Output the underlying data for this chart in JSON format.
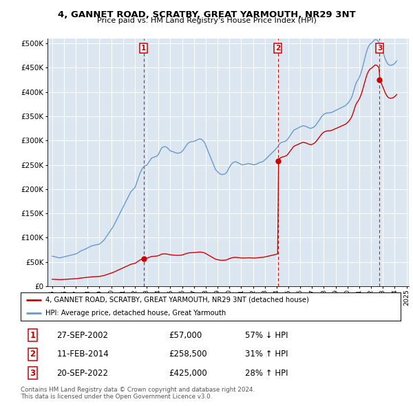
{
  "title": "4, GANNET ROAD, SCRATBY, GREAT YARMOUTH, NR29 3NT",
  "subtitle": "Price paid vs. HM Land Registry's House Price Index (HPI)",
  "legend_line1": "4, GANNET ROAD, SCRATBY, GREAT YARMOUTH, NR29 3NT (detached house)",
  "legend_line2": "HPI: Average price, detached house, Great Yarmouth",
  "footnote": "Contains HM Land Registry data © Crown copyright and database right 2024.\nThis data is licensed under the Open Government Licence v3.0.",
  "sale_color": "#cc0000",
  "hpi_color": "#6699cc",
  "ylim": [
    0,
    510000
  ],
  "yticks": [
    0,
    50000,
    100000,
    150000,
    200000,
    250000,
    300000,
    350000,
    400000,
    450000,
    500000
  ],
  "ytick_labels": [
    "£0",
    "£50K",
    "£100K",
    "£150K",
    "£200K",
    "£250K",
    "£300K",
    "£350K",
    "£400K",
    "£450K",
    "£500K"
  ],
  "sales": [
    {
      "label": "1",
      "date_num": 2002.74,
      "price": 57000,
      "date_str": "27-SEP-2002",
      "pct": "57%",
      "dir": "↓"
    },
    {
      "label": "2",
      "date_num": 2014.12,
      "price": 258500,
      "date_str": "11-FEB-2014",
      "pct": "31%",
      "dir": "↑"
    },
    {
      "label": "3",
      "date_num": 2022.72,
      "price": 425000,
      "date_str": "20-SEP-2022",
      "pct": "28%",
      "dir": "↑"
    }
  ],
  "hpi_data": {
    "years": [
      1995.0,
      1995.083,
      1995.167,
      1995.25,
      1995.333,
      1995.417,
      1995.5,
      1995.583,
      1995.667,
      1995.75,
      1995.833,
      1995.917,
      1996.0,
      1996.083,
      1996.167,
      1996.25,
      1996.333,
      1996.417,
      1996.5,
      1996.583,
      1996.667,
      1996.75,
      1996.833,
      1996.917,
      1997.0,
      1997.083,
      1997.167,
      1997.25,
      1997.333,
      1997.417,
      1997.5,
      1997.583,
      1997.667,
      1997.75,
      1997.833,
      1997.917,
      1998.0,
      1998.083,
      1998.167,
      1998.25,
      1998.333,
      1998.417,
      1998.5,
      1998.583,
      1998.667,
      1998.75,
      1998.833,
      1998.917,
      1999.0,
      1999.083,
      1999.167,
      1999.25,
      1999.333,
      1999.417,
      1999.5,
      1999.583,
      1999.667,
      1999.75,
      1999.833,
      1999.917,
      2000.0,
      2000.083,
      2000.167,
      2000.25,
      2000.333,
      2000.417,
      2000.5,
      2000.583,
      2000.667,
      2000.75,
      2000.833,
      2000.917,
      2001.0,
      2001.083,
      2001.167,
      2001.25,
      2001.333,
      2001.417,
      2001.5,
      2001.583,
      2001.667,
      2001.75,
      2001.833,
      2001.917,
      2002.0,
      2002.083,
      2002.167,
      2002.25,
      2002.333,
      2002.417,
      2002.5,
      2002.583,
      2002.667,
      2002.75,
      2002.833,
      2002.917,
      2003.0,
      2003.083,
      2003.167,
      2003.25,
      2003.333,
      2003.417,
      2003.5,
      2003.583,
      2003.667,
      2003.75,
      2003.833,
      2003.917,
      2004.0,
      2004.083,
      2004.167,
      2004.25,
      2004.333,
      2004.417,
      2004.5,
      2004.583,
      2004.667,
      2004.75,
      2004.833,
      2004.917,
      2005.0,
      2005.083,
      2005.167,
      2005.25,
      2005.333,
      2005.417,
      2005.5,
      2005.583,
      2005.667,
      2005.75,
      2005.833,
      2005.917,
      2006.0,
      2006.083,
      2006.167,
      2006.25,
      2006.333,
      2006.417,
      2006.5,
      2006.583,
      2006.667,
      2006.75,
      2006.833,
      2006.917,
      2007.0,
      2007.083,
      2007.167,
      2007.25,
      2007.333,
      2007.417,
      2007.5,
      2007.583,
      2007.667,
      2007.75,
      2007.833,
      2007.917,
      2008.0,
      2008.083,
      2008.167,
      2008.25,
      2008.333,
      2008.417,
      2008.5,
      2008.583,
      2008.667,
      2008.75,
      2008.833,
      2008.917,
      2009.0,
      2009.083,
      2009.167,
      2009.25,
      2009.333,
      2009.417,
      2009.5,
      2009.583,
      2009.667,
      2009.75,
      2009.833,
      2009.917,
      2010.0,
      2010.083,
      2010.167,
      2010.25,
      2010.333,
      2010.417,
      2010.5,
      2010.583,
      2010.667,
      2010.75,
      2010.833,
      2010.917,
      2011.0,
      2011.083,
      2011.167,
      2011.25,
      2011.333,
      2011.417,
      2011.5,
      2011.583,
      2011.667,
      2011.75,
      2011.833,
      2011.917,
      2012.0,
      2012.083,
      2012.167,
      2012.25,
      2012.333,
      2012.417,
      2012.5,
      2012.583,
      2012.667,
      2012.75,
      2012.833,
      2012.917,
      2013.0,
      2013.083,
      2013.167,
      2013.25,
      2013.333,
      2013.417,
      2013.5,
      2013.583,
      2013.667,
      2013.75,
      2013.833,
      2013.917,
      2014.0,
      2014.083,
      2014.167,
      2014.25,
      2014.333,
      2014.417,
      2014.5,
      2014.583,
      2014.667,
      2014.75,
      2014.833,
      2014.917,
      2015.0,
      2015.083,
      2015.167,
      2015.25,
      2015.333,
      2015.417,
      2015.5,
      2015.583,
      2015.667,
      2015.75,
      2015.833,
      2015.917,
      2016.0,
      2016.083,
      2016.167,
      2016.25,
      2016.333,
      2016.417,
      2016.5,
      2016.583,
      2016.667,
      2016.75,
      2016.833,
      2016.917,
      2017.0,
      2017.083,
      2017.167,
      2017.25,
      2017.333,
      2017.417,
      2017.5,
      2017.583,
      2017.667,
      2017.75,
      2017.833,
      2017.917,
      2018.0,
      2018.083,
      2018.167,
      2018.25,
      2018.333,
      2018.417,
      2018.5,
      2018.583,
      2018.667,
      2018.75,
      2018.833,
      2018.917,
      2019.0,
      2019.083,
      2019.167,
      2019.25,
      2019.333,
      2019.417,
      2019.5,
      2019.583,
      2019.667,
      2019.75,
      2019.833,
      2019.917,
      2020.0,
      2020.083,
      2020.167,
      2020.25,
      2020.333,
      2020.417,
      2020.5,
      2020.583,
      2020.667,
      2020.75,
      2020.833,
      2020.917,
      2021.0,
      2021.083,
      2021.167,
      2021.25,
      2021.333,
      2021.417,
      2021.5,
      2021.583,
      2021.667,
      2021.75,
      2021.833,
      2021.917,
      2022.0,
      2022.083,
      2022.167,
      2022.25,
      2022.333,
      2022.417,
      2022.5,
      2022.583,
      2022.667,
      2022.75,
      2022.833,
      2022.917,
      2023.0,
      2023.083,
      2023.167,
      2023.25,
      2023.333,
      2023.417,
      2023.5,
      2023.583,
      2023.667,
      2023.75,
      2023.833,
      2023.917,
      2024.0,
      2024.083,
      2024.167
    ],
    "values": [
      62000,
      61500,
      61000,
      60500,
      60000,
      59500,
      59000,
      58500,
      58500,
      59000,
      59500,
      60000,
      60500,
      61000,
      61500,
      62000,
      62500,
      63000,
      63500,
      64000,
      64500,
      65000,
      65500,
      66000,
      66500,
      67500,
      68500,
      70000,
      71500,
      72500,
      73500,
      74500,
      75000,
      76000,
      77000,
      78000,
      79000,
      80000,
      81000,
      82000,
      83000,
      83500,
      84000,
      84500,
      85000,
      85500,
      86000,
      86000,
      87000,
      88500,
      90000,
      92000,
      94000,
      96000,
      99000,
      102000,
      105000,
      108000,
      111000,
      114000,
      117000,
      120000,
      123000,
      127000,
      131000,
      135000,
      139000,
      143000,
      147000,
      151000,
      155000,
      159000,
      163000,
      167000,
      171000,
      175000,
      179000,
      183000,
      187000,
      191000,
      195000,
      197000,
      199000,
      201000,
      203000,
      208000,
      214000,
      220000,
      226000,
      232000,
      236000,
      240000,
      244000,
      246000,
      248000,
      248500,
      249000,
      252000,
      255000,
      258000,
      261000,
      264000,
      265000,
      265500,
      266000,
      267000,
      268000,
      269000,
      272000,
      276000,
      280000,
      284000,
      286000,
      287000,
      287500,
      287000,
      286500,
      285000,
      283000,
      281000,
      279000,
      278000,
      277500,
      277000,
      276000,
      275000,
      274500,
      274000,
      274000,
      274500,
      275000,
      276000,
      278000,
      280000,
      283000,
      286000,
      289000,
      292000,
      294000,
      296000,
      297000,
      297500,
      298000,
      298000,
      298500,
      299000,
      300000,
      301000,
      302000,
      303000,
      303500,
      303000,
      302000,
      300000,
      298000,
      295000,
      290000,
      285000,
      280000,
      275000,
      270000,
      265000,
      260000,
      255000,
      250000,
      245000,
      240000,
      238000,
      236000,
      234000,
      232000,
      231000,
      230000,
      230000,
      230500,
      231000,
      232000,
      234000,
      237000,
      241000,
      245000,
      248000,
      251000,
      253000,
      255000,
      256000,
      256500,
      256000,
      255000,
      254000,
      253000,
      252000,
      251000,
      250000,
      250000,
      250500,
      251000,
      251500,
      252000,
      252500,
      252500,
      252000,
      251500,
      251000,
      250500,
      250000,
      250500,
      251000,
      252000,
      253000,
      254000,
      255000,
      255500,
      256000,
      257000,
      258000,
      260000,
      262000,
      264000,
      266000,
      268000,
      270000,
      272000,
      274000,
      276000,
      278000,
      280000,
      282000,
      284000,
      287000,
      290000,
      293000,
      295000,
      296000,
      297000,
      297500,
      298000,
      299000,
      300000,
      302000,
      305000,
      308000,
      311000,
      314000,
      317000,
      320000,
      322000,
      323000,
      324000,
      325000,
      326000,
      327000,
      328000,
      329000,
      330000,
      330500,
      330000,
      329500,
      329000,
      328000,
      327000,
      326000,
      325500,
      325000,
      326000,
      327000,
      328000,
      330000,
      332000,
      335000,
      338000,
      341000,
      344000,
      347000,
      350000,
      352000,
      354000,
      355000,
      356000,
      356500,
      357000,
      357000,
      357000,
      357500,
      358000,
      359000,
      360000,
      361000,
      362000,
      363000,
      364000,
      365000,
      366000,
      367000,
      368000,
      369000,
      370000,
      371000,
      372000,
      374000,
      376000,
      378000,
      381000,
      384000,
      388000,
      393000,
      400000,
      407000,
      414000,
      419000,
      423000,
      426000,
      430000,
      435000,
      441000,
      448000,
      456000,
      464000,
      472000,
      480000,
      487000,
      492000,
      496000,
      499000,
      500000,
      502000,
      504000,
      506000,
      508000,
      508000,
      507000,
      505000,
      502000,
      498000,
      493000,
      488000,
      482000,
      476000,
      470000,
      465000,
      461000,
      458000,
      456000,
      455000,
      455000,
      455500,
      456000,
      457000,
      459000,
      461000,
      464000
    ]
  },
  "xticks": [
    1995,
    1996,
    1997,
    1998,
    1999,
    2000,
    2001,
    2002,
    2003,
    2004,
    2005,
    2006,
    2007,
    2008,
    2009,
    2010,
    2011,
    2012,
    2013,
    2014,
    2015,
    2016,
    2017,
    2018,
    2019,
    2020,
    2021,
    2022,
    2023,
    2024,
    2025
  ],
  "xlim": [
    1994.6,
    2025.2
  ],
  "table_rows": [
    {
      "label": "1",
      "date": "27-SEP-2002",
      "price": "£57,000",
      "pct": "57% ↓ HPI"
    },
    {
      "label": "2",
      "date": "11-FEB-2014",
      "price": "£258,500",
      "pct": "31% ↑ HPI"
    },
    {
      "label": "3",
      "date": "20-SEP-2022",
      "price": "£425,000",
      "pct": "28% ↑ HPI"
    }
  ]
}
